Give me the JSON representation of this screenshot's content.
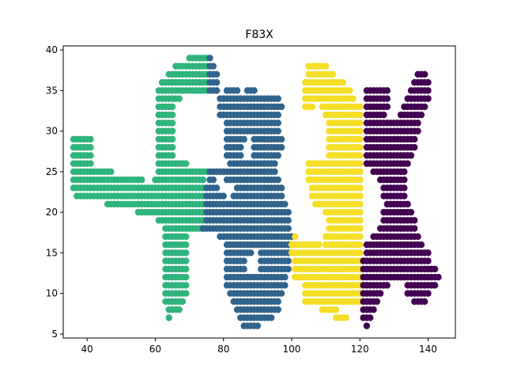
{
  "chart_data": {
    "type": "scatter",
    "title": "F83X",
    "xlabel": "",
    "ylabel": "",
    "xlim": [
      33,
      148
    ],
    "ylim": [
      4.5,
      40.5
    ],
    "xticks": [
      40,
      60,
      80,
      100,
      120,
      140
    ],
    "yticks": [
      5,
      10,
      15,
      20,
      25,
      30,
      35,
      40
    ],
    "grid": false,
    "legend": "none",
    "series": [
      {
        "color": "#2fb47c",
        "runs": [
          [
            39,
            70,
            75
          ],
          [
            38,
            66,
            75
          ],
          [
            37,
            64,
            75
          ],
          [
            36,
            62,
            75
          ],
          [
            35,
            61,
            75
          ],
          [
            34,
            61,
            67
          ],
          [
            33,
            61,
            65
          ],
          [
            32,
            61,
            65
          ],
          [
            31,
            61,
            65
          ],
          [
            30,
            61,
            65
          ],
          [
            29,
            36,
            41
          ],
          [
            29,
            61,
            65
          ],
          [
            28,
            36,
            41
          ],
          [
            28,
            61,
            65
          ],
          [
            27,
            36,
            41
          ],
          [
            27,
            61,
            65
          ],
          [
            26,
            36,
            41
          ],
          [
            26,
            61,
            69
          ],
          [
            25,
            36,
            47
          ],
          [
            25,
            61,
            75
          ],
          [
            24,
            36,
            56
          ],
          [
            24,
            60,
            74
          ],
          [
            23,
            36,
            74
          ],
          [
            22,
            37,
            74
          ],
          [
            21,
            46,
            74
          ],
          [
            20,
            55,
            74
          ],
          [
            19,
            61,
            74
          ],
          [
            18,
            63,
            74
          ],
          [
            17,
            63,
            69
          ],
          [
            16,
            63,
            69
          ],
          [
            15,
            63,
            69
          ],
          [
            14,
            63,
            69
          ],
          [
            13,
            63,
            69
          ],
          [
            12,
            63,
            69
          ],
          [
            11,
            63,
            69
          ],
          [
            10,
            63,
            69
          ],
          [
            9,
            63,
            68
          ],
          [
            8,
            64,
            67
          ],
          [
            7,
            64,
            64
          ]
        ]
      },
      {
        "color": "#30648d",
        "runs": [
          [
            39,
            76,
            76
          ],
          [
            38,
            76,
            77
          ],
          [
            37,
            76,
            78
          ],
          [
            36,
            76,
            78
          ],
          [
            35,
            76,
            78
          ],
          [
            35,
            81,
            84
          ],
          [
            35,
            87,
            89
          ],
          [
            34,
            79,
            96
          ],
          [
            33,
            79,
            97
          ],
          [
            32,
            79,
            96
          ],
          [
            31,
            81,
            96
          ],
          [
            30,
            81,
            96
          ],
          [
            29,
            81,
            86
          ],
          [
            29,
            89,
            97
          ],
          [
            28,
            81,
            85
          ],
          [
            28,
            89,
            97
          ],
          [
            27,
            81,
            85
          ],
          [
            27,
            89,
            96
          ],
          [
            26,
            82,
            95
          ],
          [
            25,
            76,
            95
          ],
          [
            24,
            76,
            77
          ],
          [
            24,
            81,
            96
          ],
          [
            23,
            75,
            78
          ],
          [
            23,
            84,
            97
          ],
          [
            22,
            75,
            80
          ],
          [
            22,
            83,
            97
          ],
          [
            21,
            75,
            98
          ],
          [
            20,
            75,
            99
          ],
          [
            19,
            75,
            99
          ],
          [
            18,
            74,
            99
          ],
          [
            17,
            79,
            100
          ],
          [
            16,
            81,
            100
          ],
          [
            15,
            81,
            88
          ],
          [
            15,
            91,
            100
          ],
          [
            14,
            81,
            86
          ],
          [
            14,
            91,
            99
          ],
          [
            13,
            81,
            86
          ],
          [
            13,
            91,
            99
          ],
          [
            12,
            81,
            98
          ],
          [
            11,
            81,
            98
          ],
          [
            10,
            82,
            97
          ],
          [
            9,
            83,
            96
          ],
          [
            8,
            84,
            96
          ],
          [
            7,
            85,
            94
          ],
          [
            6,
            86,
            90
          ]
        ]
      },
      {
        "color": "#f4de26",
        "runs": [
          [
            38,
            105,
            110
          ],
          [
            37,
            105,
            112
          ],
          [
            36,
            104,
            115
          ],
          [
            35,
            104,
            117
          ],
          [
            34,
            104,
            118
          ],
          [
            33,
            104,
            106
          ],
          [
            33,
            109,
            120
          ],
          [
            32,
            110,
            120
          ],
          [
            31,
            111,
            120
          ],
          [
            30,
            111,
            120
          ],
          [
            29,
            111,
            120
          ],
          [
            28,
            111,
            120
          ],
          [
            27,
            111,
            120
          ],
          [
            26,
            105,
            120
          ],
          [
            25,
            105,
            120
          ],
          [
            24,
            105,
            120
          ],
          [
            23,
            106,
            120
          ],
          [
            22,
            106,
            120
          ],
          [
            21,
            107,
            120
          ],
          [
            20,
            110,
            120
          ],
          [
            19,
            111,
            120
          ],
          [
            18,
            111,
            120
          ],
          [
            17,
            110,
            120
          ],
          [
            17,
            101,
            101
          ],
          [
            16,
            100,
            108
          ],
          [
            16,
            110,
            120
          ],
          [
            15,
            100,
            120
          ],
          [
            14,
            101,
            120
          ],
          [
            13,
            101,
            120
          ],
          [
            12,
            101,
            120
          ],
          [
            11,
            104,
            120
          ],
          [
            10,
            104,
            120
          ],
          [
            9,
            104,
            120
          ],
          [
            8,
            109,
            113
          ],
          [
            7,
            113,
            116
          ]
        ]
      },
      {
        "color": "#440154",
        "runs": [
          [
            37,
            137,
            139
          ],
          [
            36,
            136,
            140
          ],
          [
            35,
            122,
            128
          ],
          [
            35,
            135,
            140
          ],
          [
            34,
            122,
            128
          ],
          [
            34,
            134,
            140
          ],
          [
            33,
            122,
            128
          ],
          [
            33,
            133,
            139
          ],
          [
            32,
            122,
            127
          ],
          [
            32,
            132,
            138
          ],
          [
            31,
            122,
            130
          ],
          [
            31,
            131,
            137
          ],
          [
            30,
            122,
            137
          ],
          [
            29,
            122,
            136
          ],
          [
            28,
            122,
            136
          ],
          [
            27,
            122,
            135
          ],
          [
            26,
            122,
            134
          ],
          [
            25,
            124,
            133
          ],
          [
            24,
            126,
            133
          ],
          [
            23,
            127,
            133
          ],
          [
            22,
            127,
            133
          ],
          [
            21,
            128,
            134
          ],
          [
            20,
            127,
            135
          ],
          [
            19,
            127,
            136
          ],
          [
            18,
            126,
            136
          ],
          [
            17,
            124,
            137
          ],
          [
            16,
            122,
            138
          ],
          [
            15,
            122,
            140
          ],
          [
            14,
            121,
            140
          ],
          [
            13,
            121,
            142
          ],
          [
            12,
            121,
            143
          ],
          [
            11,
            121,
            128
          ],
          [
            11,
            134,
            142
          ],
          [
            10,
            121,
            126
          ],
          [
            10,
            134,
            140
          ],
          [
            9,
            121,
            125
          ],
          [
            9,
            136,
            139
          ],
          [
            8,
            121,
            124
          ],
          [
            7,
            121,
            123
          ],
          [
            6,
            122,
            122
          ]
        ]
      }
    ]
  }
}
